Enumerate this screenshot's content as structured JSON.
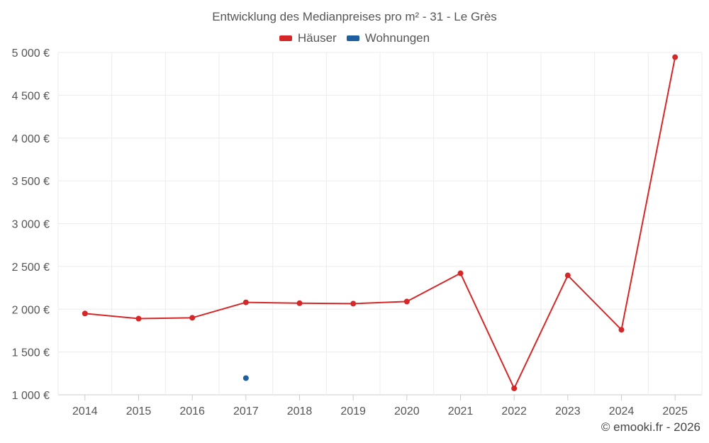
{
  "chart_data": {
    "type": "line",
    "title": "Entwicklung des Medianpreises pro m² - 31 - Le Grès",
    "categories": [
      "2014",
      "2015",
      "2016",
      "2017",
      "2018",
      "2019",
      "2020",
      "2021",
      "2022",
      "2023",
      "2024",
      "2025"
    ],
    "y_tick_labels": [
      "1 000 €",
      "1 500 €",
      "2 000 €",
      "2 500 €",
      "3 000 €",
      "3 500 €",
      "4 000 €",
      "4 500 €",
      "5 000 €"
    ],
    "y_ticks": [
      1000,
      1500,
      2000,
      2500,
      3000,
      3500,
      4000,
      4500,
      5000
    ],
    "ylim": [
      1000,
      5000
    ],
    "xlabel": "",
    "ylabel": "",
    "grid": true,
    "legend_position": "top-center",
    "series": [
      {
        "name": "Häuser",
        "color": "#d62728",
        "values": [
          1950,
          1890,
          1900,
          2080,
          2070,
          2065,
          2090,
          2420,
          1075,
          2395,
          1760,
          4945
        ]
      },
      {
        "name": "Wohnungen",
        "color": "#1f5fa0",
        "values": [
          null,
          null,
          null,
          1195,
          null,
          null,
          null,
          null,
          null,
          null,
          null,
          null
        ]
      }
    ]
  },
  "credit": "© emooki.fr - 2026"
}
